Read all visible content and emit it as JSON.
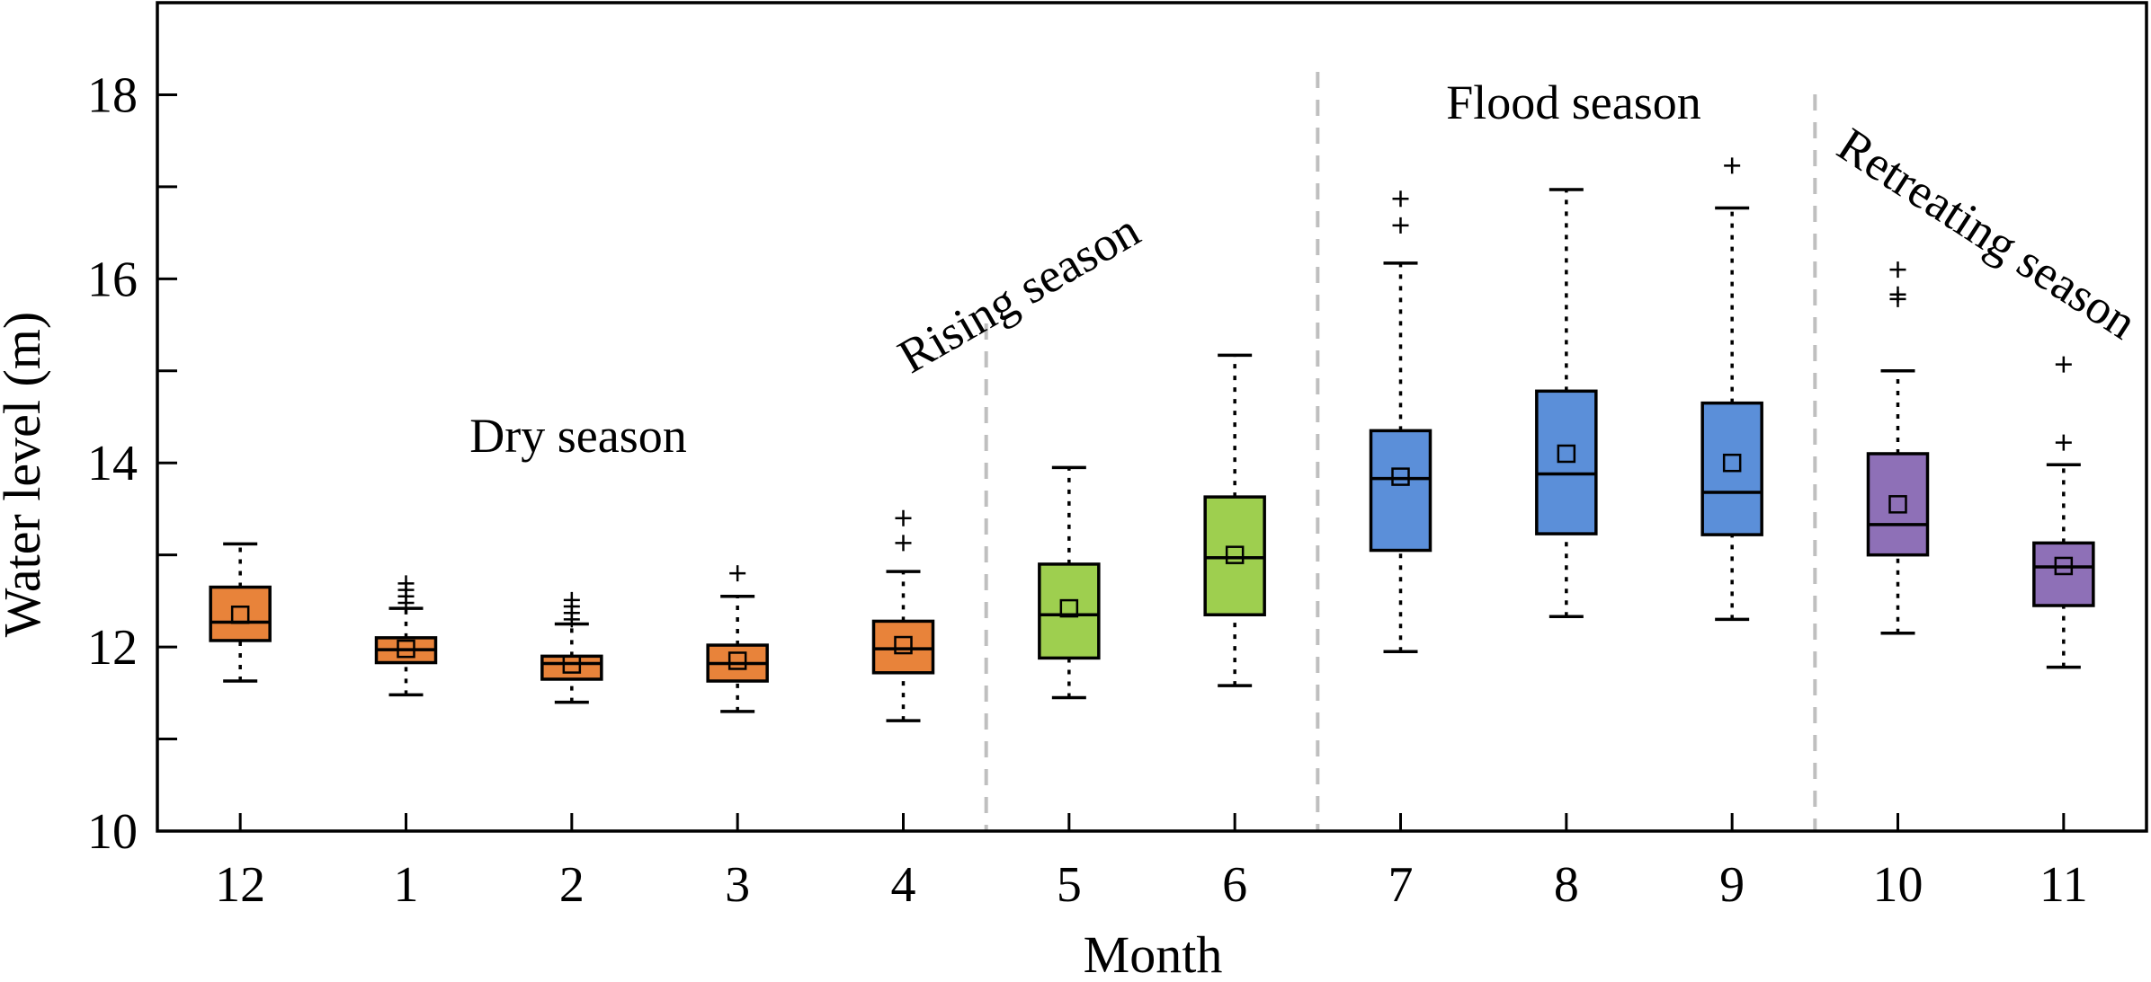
{
  "chart_data": {
    "type": "box",
    "title": "",
    "xlabel": "Month",
    "ylabel": "Water level (m)",
    "ylim": [
      10,
      19
    ],
    "yticks": [
      10,
      12,
      14,
      16,
      18
    ],
    "grid": false,
    "categories": [
      "12",
      "1",
      "2",
      "3",
      "4",
      "5",
      "6",
      "7",
      "8",
      "9",
      "10",
      "11"
    ],
    "boxes": [
      {
        "month": "12",
        "season": "dry",
        "whisker_low": 11.63,
        "q1": 12.07,
        "median": 12.27,
        "q3": 12.65,
        "whisker_high": 13.12,
        "mean": 12.35,
        "outliers": []
      },
      {
        "month": "1",
        "season": "dry",
        "whisker_low": 11.48,
        "q1": 11.83,
        "median": 11.97,
        "q3": 12.1,
        "whisker_high": 12.42,
        "mean": 11.98,
        "outliers": [
          12.48,
          12.55,
          12.62,
          12.69
        ]
      },
      {
        "month": "2",
        "season": "dry",
        "whisker_low": 11.4,
        "q1": 11.65,
        "median": 11.82,
        "q3": 11.9,
        "whisker_high": 12.25,
        "mean": 11.81,
        "outliers": [
          12.3,
          12.37,
          12.44,
          12.51
        ]
      },
      {
        "month": "3",
        "season": "dry",
        "whisker_low": 11.3,
        "q1": 11.63,
        "median": 11.82,
        "q3": 12.02,
        "whisker_high": 12.55,
        "mean": 11.85,
        "outliers": [
          12.8
        ]
      },
      {
        "month": "4",
        "season": "dry",
        "whisker_low": 11.2,
        "q1": 11.72,
        "median": 11.98,
        "q3": 12.28,
        "whisker_high": 12.82,
        "mean": 12.02,
        "outliers": [
          13.13,
          13.4
        ]
      },
      {
        "month": "5",
        "season": "rising",
        "whisker_low": 11.45,
        "q1": 11.88,
        "median": 12.35,
        "q3": 12.9,
        "whisker_high": 13.95,
        "mean": 12.42,
        "outliers": []
      },
      {
        "month": "6",
        "season": "rising",
        "whisker_low": 11.58,
        "q1": 12.35,
        "median": 12.97,
        "q3": 13.63,
        "whisker_high": 15.17,
        "mean": 13.0,
        "outliers": []
      },
      {
        "month": "7",
        "season": "flood",
        "whisker_low": 11.95,
        "q1": 13.05,
        "median": 13.83,
        "q3": 14.35,
        "whisker_high": 16.17,
        "mean": 13.85,
        "outliers": [
          16.58,
          16.87
        ]
      },
      {
        "month": "8",
        "season": "flood",
        "whisker_low": 12.33,
        "q1": 13.23,
        "median": 13.88,
        "q3": 14.78,
        "whisker_high": 16.97,
        "mean": 14.1,
        "outliers": []
      },
      {
        "month": "9",
        "season": "flood",
        "whisker_low": 12.3,
        "q1": 13.22,
        "median": 13.68,
        "q3": 14.65,
        "whisker_high": 16.77,
        "mean": 14.0,
        "outliers": [
          17.23
        ]
      },
      {
        "month": "10",
        "season": "retreating",
        "whisker_low": 12.15,
        "q1": 13.0,
        "median": 13.33,
        "q3": 14.1,
        "whisker_high": 15.0,
        "mean": 13.55,
        "outliers": [
          15.78,
          15.83,
          16.1
        ]
      },
      {
        "month": "11",
        "season": "retreating",
        "whisker_low": 11.78,
        "q1": 12.45,
        "median": 12.87,
        "q3": 13.13,
        "whisker_high": 13.98,
        "mean": 12.88,
        "outliers": [
          14.22,
          15.07
        ]
      }
    ],
    "season_colors": {
      "dry": "#E8833A",
      "rising": "#9ECF4F",
      "flood": "#5B8FD9",
      "retreating": "#8E70B7"
    },
    "season_labels": {
      "dry": "Dry season",
      "rising": "Rising season",
      "flood": "Flood season",
      "retreating": "Retreating season"
    }
  }
}
